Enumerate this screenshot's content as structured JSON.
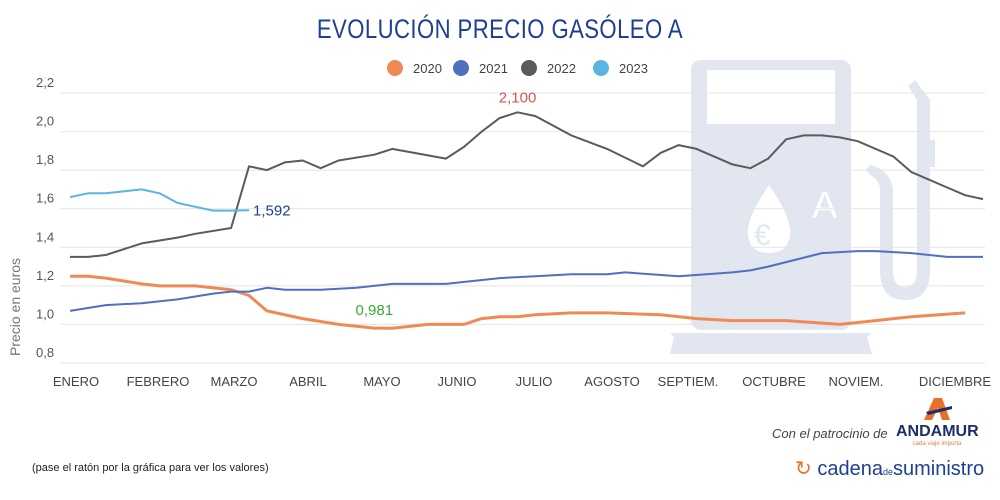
{
  "chart_data": {
    "type": "line",
    "title": "EVOLUCIÓN PRECIO GASÓLEO A",
    "ylabel": "Precio en euros",
    "xlabel": "",
    "ylim": [
      0.8,
      2.2
    ],
    "yticks": [
      "0,8",
      "1,0",
      "1,2",
      "1,4",
      "1,6",
      "1,8",
      "2,0",
      "2,2"
    ],
    "ytick_values": [
      0.8,
      1.0,
      1.2,
      1.4,
      1.6,
      1.8,
      2.0,
      2.2
    ],
    "x_unit": "week of year",
    "xlim": [
      1,
      52
    ],
    "xticks": [
      "ENERO",
      "FEBRERO",
      "MARZO",
      "ABRIL",
      "MAYO",
      "JUNIO",
      "JULIO",
      "AGOSTO",
      "SEPTIEM.",
      "OCTUBRE",
      "NOVIEM.",
      "DICIEMBRE"
    ],
    "grid": true,
    "legend_position": "top-center",
    "series": [
      {
        "name": "2020",
        "color": "#f08a55",
        "points": [
          [
            1,
            1.25
          ],
          [
            2,
            1.25
          ],
          [
            3,
            1.24
          ],
          [
            5,
            1.21
          ],
          [
            6,
            1.2
          ],
          [
            8,
            1.2
          ],
          [
            10,
            1.18
          ],
          [
            11,
            1.15
          ],
          [
            12,
            1.07
          ],
          [
            14,
            1.03
          ],
          [
            16,
            1.0
          ],
          [
            18,
            0.981
          ],
          [
            19,
            0.98
          ],
          [
            21,
            1.0
          ],
          [
            23,
            1.0
          ],
          [
            24,
            1.03
          ],
          [
            25,
            1.04
          ],
          [
            26,
            1.04
          ],
          [
            27,
            1.05
          ],
          [
            29,
            1.06
          ],
          [
            31,
            1.06
          ],
          [
            34,
            1.05
          ],
          [
            36,
            1.03
          ],
          [
            38,
            1.02
          ],
          [
            41,
            1.02
          ],
          [
            44,
            1.0
          ],
          [
            46,
            1.02
          ],
          [
            48,
            1.04
          ],
          [
            51,
            1.06
          ]
        ]
      },
      {
        "name": "2021",
        "color": "#4f6fc0",
        "points": [
          [
            1,
            1.07
          ],
          [
            3,
            1.1
          ],
          [
            5,
            1.11
          ],
          [
            7,
            1.13
          ],
          [
            9,
            1.16
          ],
          [
            10,
            1.17
          ],
          [
            11,
            1.17
          ],
          [
            12,
            1.19
          ],
          [
            13,
            1.18
          ],
          [
            15,
            1.18
          ],
          [
            17,
            1.19
          ],
          [
            19,
            1.21
          ],
          [
            22,
            1.21
          ],
          [
            25,
            1.24
          ],
          [
            27,
            1.25
          ],
          [
            29,
            1.26
          ],
          [
            31,
            1.26
          ],
          [
            32,
            1.27
          ],
          [
            35,
            1.25
          ],
          [
            38,
            1.27
          ],
          [
            39,
            1.28
          ],
          [
            40,
            1.3
          ],
          [
            43,
            1.37
          ],
          [
            45,
            1.38
          ],
          [
            46,
            1.38
          ],
          [
            48,
            1.37
          ],
          [
            50,
            1.35
          ],
          [
            52,
            1.35
          ]
        ]
      },
      {
        "name": "2022",
        "color": "#5b5b5f",
        "points": [
          [
            1,
            1.35
          ],
          [
            2,
            1.35
          ],
          [
            3,
            1.36
          ],
          [
            5,
            1.42
          ],
          [
            7,
            1.45
          ],
          [
            8,
            1.47
          ],
          [
            10,
            1.5
          ],
          [
            11,
            1.82
          ],
          [
            12,
            1.8
          ],
          [
            13,
            1.84
          ],
          [
            14,
            1.85
          ],
          [
            15,
            1.81
          ],
          [
            16,
            1.85
          ],
          [
            18,
            1.88
          ],
          [
            19,
            1.91
          ],
          [
            22,
            1.86
          ],
          [
            23,
            1.92
          ],
          [
            24,
            2.0
          ],
          [
            25,
            2.07
          ],
          [
            26,
            2.1
          ],
          [
            27,
            2.08
          ],
          [
            29,
            1.98
          ],
          [
            31,
            1.91
          ],
          [
            33,
            1.82
          ],
          [
            34,
            1.89
          ],
          [
            35,
            1.93
          ],
          [
            36,
            1.91
          ],
          [
            38,
            1.83
          ],
          [
            39,
            1.81
          ],
          [
            40,
            1.86
          ],
          [
            41,
            1.96
          ],
          [
            42,
            1.98
          ],
          [
            43,
            1.98
          ],
          [
            44,
            1.97
          ],
          [
            45,
            1.95
          ],
          [
            47,
            1.87
          ],
          [
            48,
            1.79
          ],
          [
            50,
            1.71
          ],
          [
            51,
            1.67
          ],
          [
            52,
            1.65
          ]
        ]
      },
      {
        "name": "2023",
        "color": "#5bb5e3",
        "points": [
          [
            1,
            1.66
          ],
          [
            2,
            1.68
          ],
          [
            3,
            1.68
          ],
          [
            4,
            1.69
          ],
          [
            5,
            1.7
          ],
          [
            6,
            1.68
          ],
          [
            7,
            1.63
          ],
          [
            8,
            1.61
          ],
          [
            9,
            1.59
          ],
          [
            10,
            1.59
          ],
          [
            11,
            1.592
          ]
        ]
      }
    ],
    "annotations": [
      {
        "text": "2,100",
        "series": "2022",
        "x": 26,
        "y": 2.1,
        "color": "#d9534f"
      },
      {
        "text": "1,592",
        "series": "2023",
        "x": 11,
        "y": 1.592,
        "color": "#1d3f95"
      },
      {
        "text": "0,981",
        "series": "2020",
        "x": 18,
        "y": 0.981,
        "color": "#3aaa35"
      }
    ]
  },
  "footer": {
    "hint": "(pase el ratón por la gráfica para ver los valores)",
    "sponsor_label": "Con el patrocinio de",
    "sponsor_name": "ANDAMUR",
    "sponsor_slogan": "cada viaje importa",
    "publisher_a": "cadena",
    "publisher_b": "de",
    "publisher_c": "suministro"
  }
}
